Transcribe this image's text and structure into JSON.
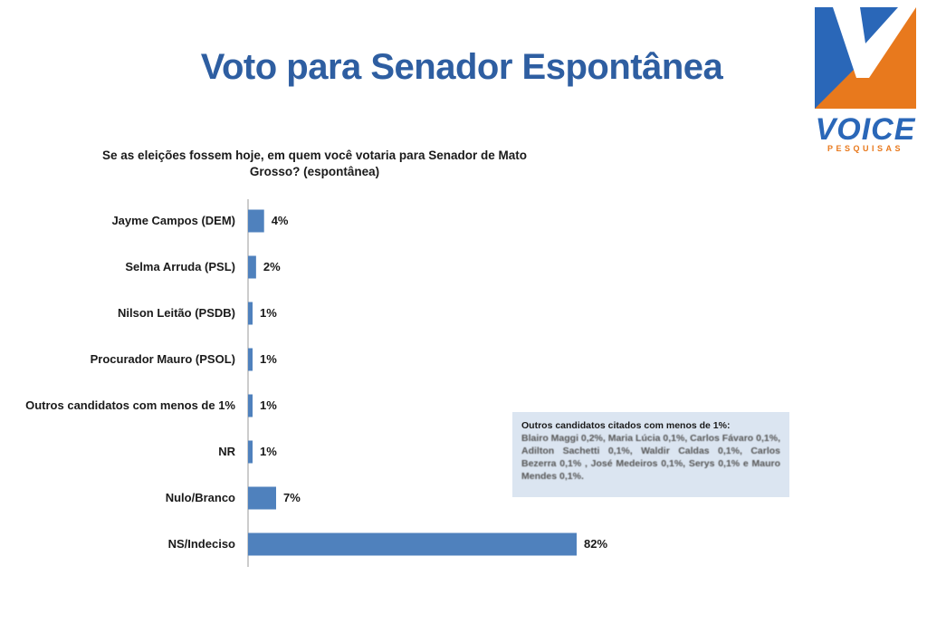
{
  "page": {
    "title": "Voto para Senador Espontânea",
    "question": "Se as eleições fossem hoje, em quem você votaria para Senador de Mato Grosso? (espontânea)"
  },
  "logo": {
    "word": "VOICE",
    "subtitle": "PESQUISAS",
    "colors": {
      "blue": "#2a67b8",
      "orange": "#e8791d"
    }
  },
  "note": {
    "title": "Outros candidatos citados com menos de 1%:",
    "body": "Blairo Maggi 0,2%, Maria Lúcia 0,1%, Carlos Fávaro 0,1%, Adilton Sachetti 0,1%, Waldir Caldas 0,1%, Carlos Bezerra 0,1% , José Medeiros 0,1%, Serys 0,1% e Mauro Mendes 0,1%."
  },
  "chart_data": {
    "type": "bar",
    "orientation": "horizontal",
    "categories": [
      "Jayme Campos (DEM)",
      "Selma Arruda (PSL)",
      "Nilson Leitão (PSDB)",
      "Procurador Mauro (PSOL)",
      "Outros candidatos com menos de 1%",
      "NR",
      "Nulo/Branco",
      "NS/Indeciso"
    ],
    "values": [
      4,
      2,
      1,
      1,
      1,
      1,
      7,
      82
    ],
    "value_labels": [
      "4%",
      "2%",
      "1%",
      "1%",
      "1%",
      "1%",
      "7%",
      "82%"
    ],
    "xlim": [
      0,
      82
    ],
    "bar_color": "#4f81bd",
    "grid": false
  }
}
